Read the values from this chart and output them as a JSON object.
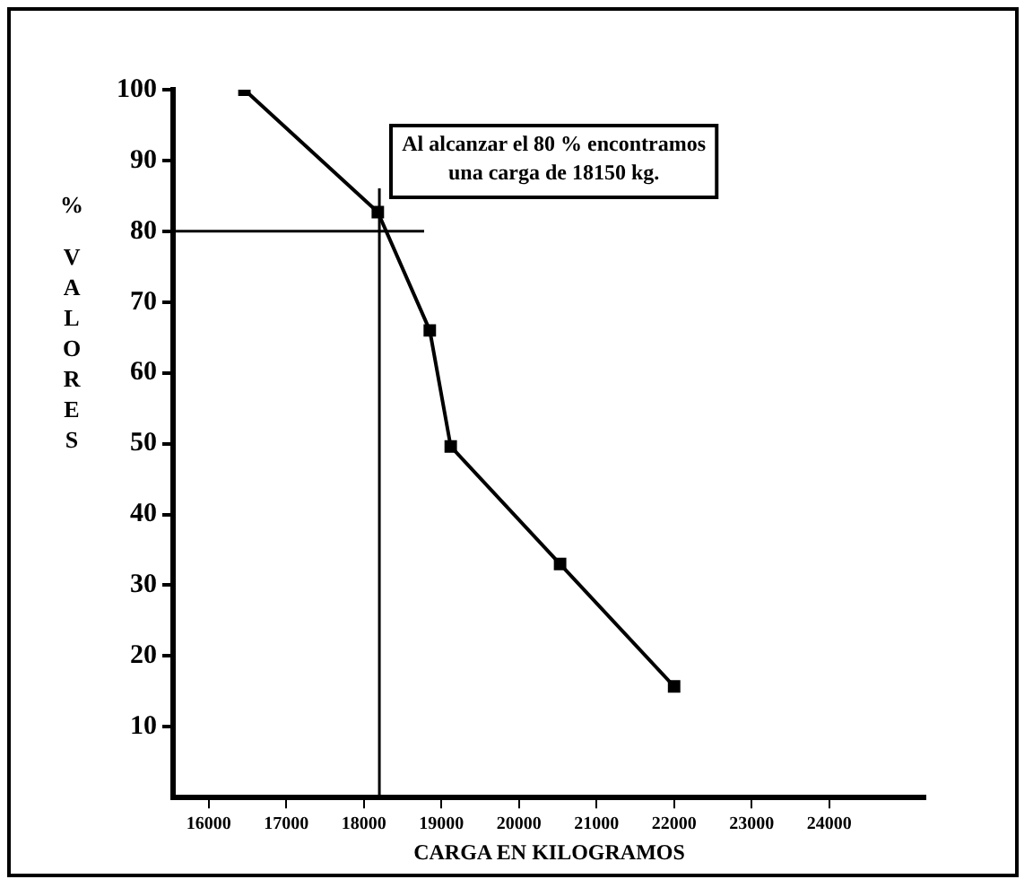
{
  "chart_data": {
    "type": "line",
    "xlabel": "CARGA EN KILOGRAMOS",
    "ylabel": "% VALORES",
    "annotations": [
      "Al alcanzar el 80 % encontramos\nuna carga de 18150 kg."
    ],
    "x": [
      16460,
      18180,
      18850,
      19120,
      20530,
      22000
    ],
    "series": [
      {
        "color": "#000000",
        "values": [
          100,
          82.7,
          66,
          49.6,
          33,
          15.7
        ]
      }
    ],
    "xlim": [
      15540,
      25240
    ],
    "xticks": [
      16000,
      17000,
      18000,
      19000,
      20000,
      21000,
      22000,
      23000,
      24000
    ],
    "ylim": [
      0,
      100
    ],
    "yticks": [
      10,
      20,
      30,
      40,
      50,
      60,
      70,
      80,
      90,
      100
    ],
    "ref_lines": [
      {
        "axis": "y",
        "value": 80,
        "color": "#000000"
      },
      {
        "axis": "x",
        "value": 18200,
        "color": "#000000"
      }
    ],
    "grid": false,
    "legend": false,
    "marker": "square",
    "line_style": "solid"
  }
}
